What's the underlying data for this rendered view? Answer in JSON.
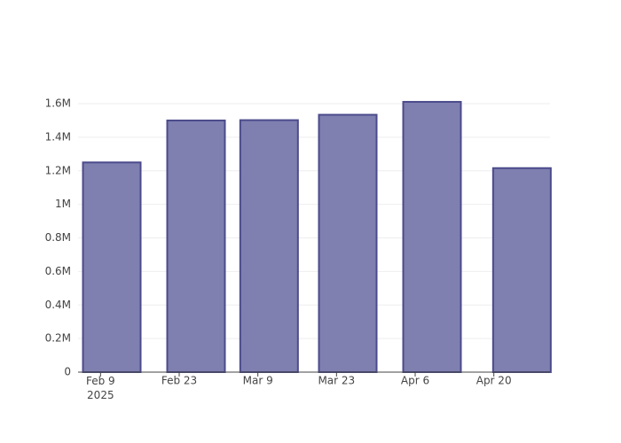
{
  "chart_data": {
    "type": "bar",
    "x": [
      "2025-02-11",
      "2025-02-26",
      "2025-03-11",
      "2025-03-25",
      "2025-04-09",
      "2025-04-25"
    ],
    "values": [
      1250000,
      1500000,
      1502000,
      1534000,
      1611000,
      1216000
    ],
    "color": "#7f7fb0",
    "line_color": "#4b4b8c",
    "xlim": [
      "2025-02-05",
      "2025-04-30"
    ],
    "xticks": [
      {
        "value": "2025-02-09",
        "label": [
          "Feb 9",
          "2025"
        ]
      },
      {
        "value": "2025-02-23",
        "label": "Feb 23"
      },
      {
        "value": "2025-03-09",
        "label": "Mar 9"
      },
      {
        "value": "2025-03-23",
        "label": "Mar 23"
      },
      {
        "value": "2025-04-06",
        "label": "Apr 6"
      },
      {
        "value": "2025-04-20",
        "label": "Apr 20"
      }
    ],
    "ylim": [
      0,
      1690000
    ],
    "yticks": [
      0,
      {
        "value": 200000,
        "label": "0.2M"
      },
      {
        "value": 400000,
        "label": "0.4M"
      },
      {
        "value": 600000,
        "label": "0.6M"
      },
      {
        "value": 800000,
        "label": "0.8M"
      },
      {
        "value": 1000000,
        "label": "1M"
      },
      {
        "value": 1200000,
        "label": "1.2M"
      },
      {
        "value": 1400000,
        "label": "1.4M"
      },
      {
        "value": 1600000,
        "label": "1.6M"
      }
    ],
    "grid": true
  }
}
